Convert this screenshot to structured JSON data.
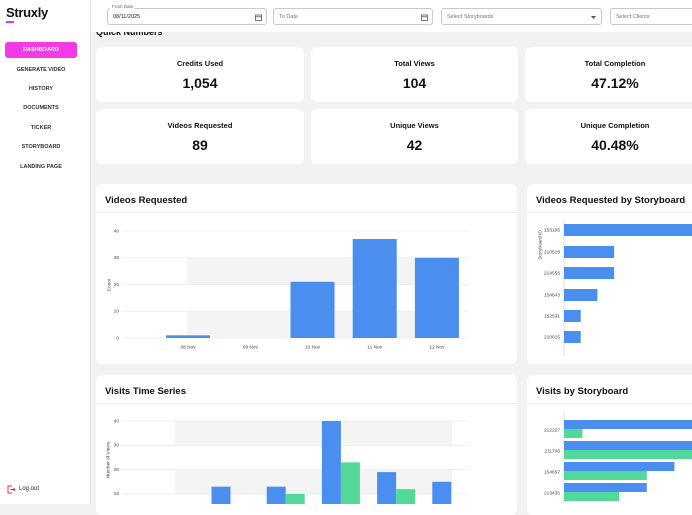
{
  "sidebar": {
    "logo": "Struxly",
    "nav": [
      "DASHBOARD",
      "GENERATE VIDEO",
      "HISTORY",
      "DOCUMENTS",
      "TICKER",
      "STORYBOARD",
      "LANDING PAGE"
    ],
    "logout": "Log out"
  },
  "filters": {
    "from_date": {
      "label": "From Date",
      "value": "08/11/2025"
    },
    "to_date": "To Date",
    "storyboards": "Select Storyboards",
    "clients": "Select Clients"
  },
  "section_title": "Quick Numbers",
  "stats": [
    {
      "label": "Credits Used",
      "value": "1,054"
    },
    {
      "label": "Total Views",
      "value": "104"
    },
    {
      "label": "Total Completion",
      "value": "47.12%"
    },
    {
      "label": "Videos Requested",
      "value": "89"
    },
    {
      "label": "Unique Views",
      "value": "42"
    },
    {
      "label": "Unique Completion",
      "value": "40.48%"
    }
  ],
  "charts": [
    {
      "type": "bar",
      "title": "Videos Requested",
      "y_label": "Count",
      "categories": [
        "08 Nov",
        "09 Nov",
        "10 Nov",
        "11 Nov",
        "12 Nov"
      ],
      "values": [
        1,
        0,
        21,
        37,
        30
      ],
      "color": "#4a8ff0",
      "ylim": [
        0,
        40
      ],
      "yticks": [
        0,
        10,
        20,
        30,
        40
      ]
    },
    {
      "type": "barh",
      "title": "Videos Requested by Storyboard",
      "y_label": "Storyboard ID",
      "categories": [
        "153195",
        "210518",
        "214556",
        "154643",
        "152531",
        "210015"
      ],
      "values": [
        8,
        3,
        3,
        2,
        1,
        1
      ],
      "color": "#4a8ff0"
    },
    {
      "type": "grouped_bar",
      "title": "Visits Time Series",
      "y_label": "Number of Views",
      "categories": [
        null,
        null,
        null,
        null,
        null
      ],
      "series": [
        {
          "color": "#4a8ff0",
          "values": [
            13,
            13,
            40,
            19,
            15
          ]
        },
        {
          "color": "#52d99a",
          "values": [
            0,
            10,
            23,
            12,
            0
          ]
        }
      ],
      "ylim": [
        0,
        40
      ],
      "yticks": [
        10,
        20,
        30,
        40
      ]
    },
    {
      "type": "grouped_barh",
      "title": "Visits by Storyboard",
      "categories": [
        "212227",
        "211706",
        "154657",
        "213435"
      ],
      "series": [
        {
          "color": "#4a8ff0",
          "values": [
            16,
            16,
            12,
            9
          ]
        },
        {
          "color": "#52d99a",
          "values": [
            2,
            14,
            9,
            6
          ]
        }
      ]
    }
  ]
}
